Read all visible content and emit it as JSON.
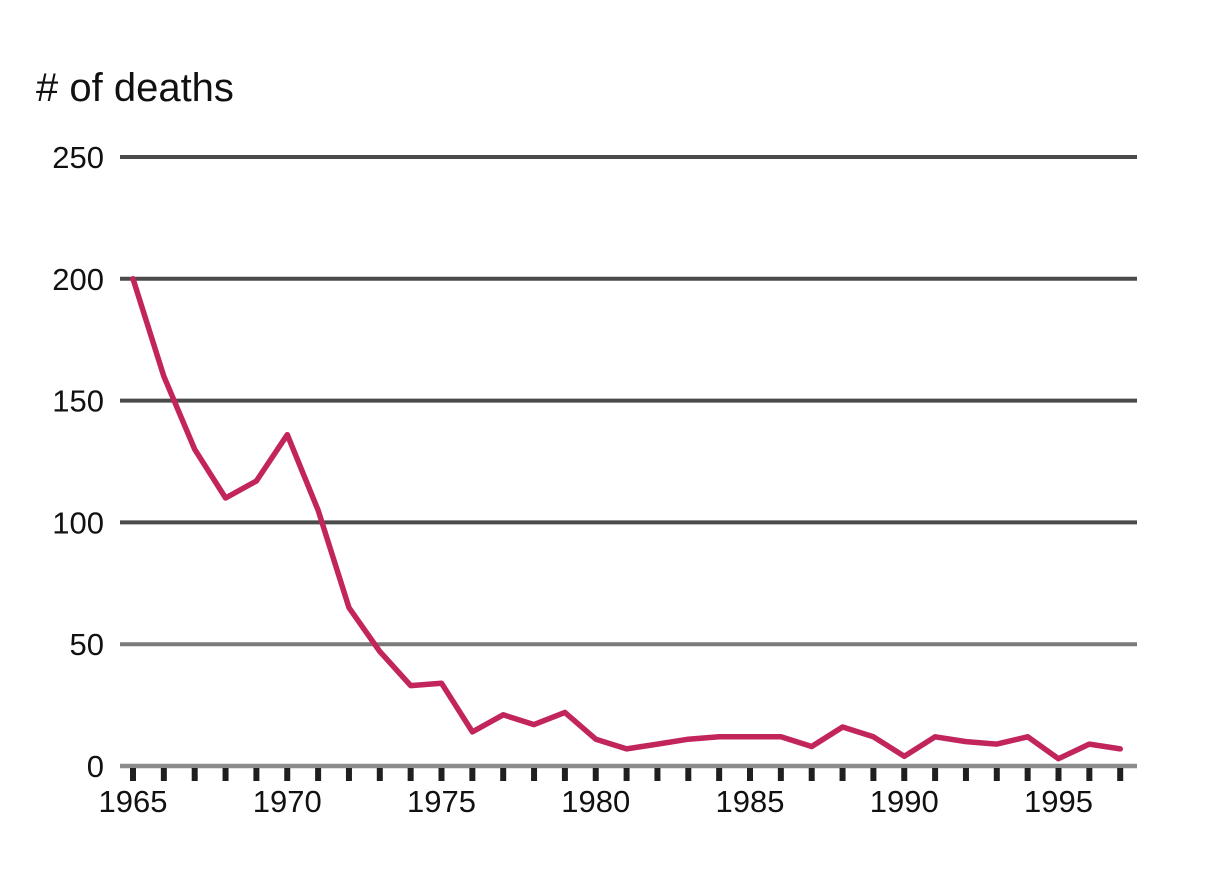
{
  "chart_data": {
    "type": "line",
    "title": "# of deaths",
    "xlabel": "",
    "ylabel": "# of deaths",
    "x": [
      1965,
      1966,
      1967,
      1968,
      1969,
      1970,
      1971,
      1972,
      1973,
      1974,
      1975,
      1976,
      1977,
      1978,
      1979,
      1980,
      1981,
      1982,
      1983,
      1984,
      1985,
      1986,
      1987,
      1988,
      1989,
      1990,
      1991,
      1992,
      1993,
      1994,
      1995,
      1996,
      1997
    ],
    "series": [
      {
        "name": "# of deaths",
        "color": "#c2255c",
        "values": [
          200,
          160,
          130,
          110,
          117,
          136,
          105,
          65,
          47,
          33,
          34,
          14,
          21,
          17,
          22,
          11,
          7,
          9,
          11,
          12,
          12,
          12,
          8,
          16,
          12,
          4,
          12,
          10,
          9,
          12,
          3,
          9,
          7
        ]
      }
    ],
    "ylim": [
      0,
      250
    ],
    "xlim": [
      1965,
      1997
    ],
    "yticks": [
      0,
      50,
      100,
      150,
      200,
      250
    ],
    "gridlines": [
      {
        "value": 250,
        "color": "#4b4b4b"
      },
      {
        "value": 200,
        "color": "#4b4b4b"
      },
      {
        "value": 150,
        "color": "#4b4b4b"
      },
      {
        "value": 100,
        "color": "#4b4b4b"
      },
      {
        "value": 50,
        "color": "#7a7a7a"
      }
    ],
    "baseline_value": 0,
    "xticks_every_year": true,
    "xtick_labeled_years": [
      1965,
      1970,
      1975,
      1980,
      1985,
      1990,
      1995
    ],
    "legend": "none",
    "grid": "horizontal-only",
    "colors": {
      "line": "#c2255c",
      "major_grid": "#4b4b4b",
      "grid_50": "#7a7a7a",
      "baseline": "#8c8c8c",
      "tick": "#1f1f1f",
      "label_text": "#111111"
    }
  }
}
